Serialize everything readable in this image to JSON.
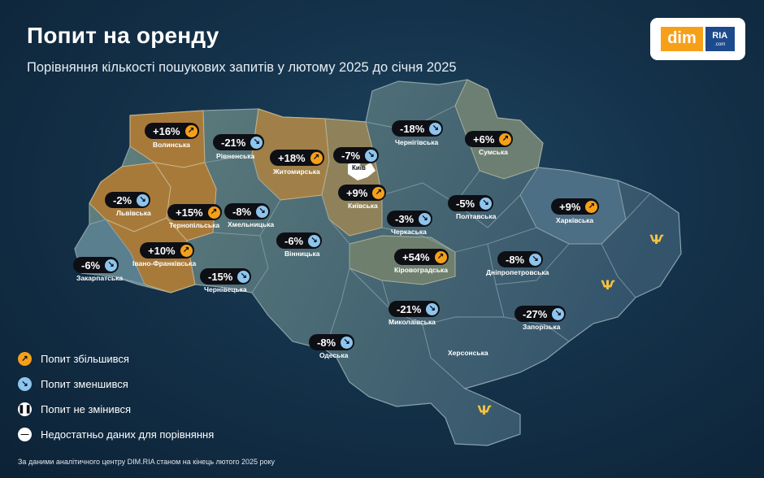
{
  "title": "Попит на оренду",
  "subtitle": "Порівняння кількості пошукових запитів у лютому 2025 до січня 2025",
  "logo": {
    "dim": "dim",
    "ria": "RIA",
    "ria_sub": ".com"
  },
  "colors": {
    "increase": "#f6a01a",
    "decrease": "#8ec5ee",
    "increase_region": "#a87a3a",
    "decrease_region": "#5a7f8e"
  },
  "regions": [
    {
      "name": "Волинська",
      "change": "+16%",
      "trend": "up"
    },
    {
      "name": "Рівненська",
      "change": "-21%",
      "trend": "down"
    },
    {
      "name": "Житомирська",
      "change": "+18%",
      "trend": "up"
    },
    {
      "name": "Київ",
      "change": "-7%",
      "trend": "down"
    },
    {
      "name": "Чернігівська",
      "change": "-18%",
      "trend": "down"
    },
    {
      "name": "Сумська",
      "change": "+6%",
      "trend": "up"
    },
    {
      "name": "Львівська",
      "change": "-2%",
      "trend": "down"
    },
    {
      "name": "Тернопільська",
      "change": "+15%",
      "trend": "up"
    },
    {
      "name": "Хмельницька",
      "change": "-8%",
      "trend": "down"
    },
    {
      "name": "Київська",
      "change": "+9%",
      "trend": "up"
    },
    {
      "name": "Полтавська",
      "change": "-5%",
      "trend": "down"
    },
    {
      "name": "Харківська",
      "change": "+9%",
      "trend": "up"
    },
    {
      "name": "Черкаська",
      "change": "-3%",
      "trend": "down"
    },
    {
      "name": "Вінницька",
      "change": "-6%",
      "trend": "down"
    },
    {
      "name": "Закарпатська",
      "change": "-6%",
      "trend": "down"
    },
    {
      "name": "Івано-Франківська",
      "change": "+10%",
      "trend": "up"
    },
    {
      "name": "Чернівецька",
      "change": "-15%",
      "trend": "down"
    },
    {
      "name": "Кіровоградська",
      "change": "+54%",
      "trend": "up"
    },
    {
      "name": "Дніпропетровська",
      "change": "-8%",
      "trend": "down"
    },
    {
      "name": "Миколаївська",
      "change": "-21%",
      "trend": "down"
    },
    {
      "name": "Запорізька",
      "change": "-27%",
      "trend": "down"
    },
    {
      "name": "Одеська",
      "change": "-8%",
      "trend": "down"
    },
    {
      "name": "Херсонська",
      "change": "",
      "trend": "nodata"
    }
  ],
  "legend": [
    {
      "label": "Попит збільшився",
      "icon": "arrow-up-right-icon"
    },
    {
      "label": "Попит зменшився",
      "icon": "arrow-down-right-icon"
    },
    {
      "label": "Попит не змінився",
      "icon": "pause-icon"
    },
    {
      "label": "Недостатньо даних для порівняння",
      "icon": "minus-icon"
    }
  ],
  "footer": "За даними аналітичного центру DIM.RIA станом на кінець лютого 2025 року"
}
